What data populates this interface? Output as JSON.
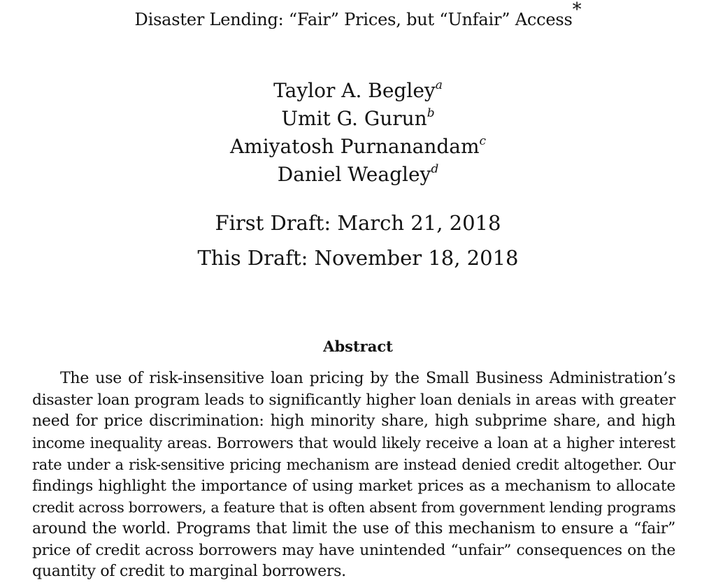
{
  "paper": {
    "title": "Disaster Lending: “Fair” Prices, but “Unfair” Access",
    "title_footnote_mark": "*",
    "authors": [
      {
        "name": "Taylor A. Begley",
        "affiliation_mark": "a"
      },
      {
        "name": "Umit G. Gurun",
        "affiliation_mark": "b"
      },
      {
        "name": "Amiyatosh Purnanandam",
        "affiliation_mark": "c"
      },
      {
        "name": "Daniel Weagley",
        "affiliation_mark": "d"
      }
    ],
    "first_draft": "First Draft: March 21, 2018",
    "this_draft": "This Draft: November 18, 2018"
  },
  "abstract": {
    "heading": "Abstract",
    "lines": [
      "The use of risk-insensitive loan pricing by the Small Business Administration’s",
      "disaster loan program leads to significantly higher loan denials in areas with greater",
      "need for price discrimination: high minority share, high subprime share, and high",
      "income inequality areas. Borrowers that would likely receive a loan at a higher interest",
      "rate under a risk-sensitive pricing mechanism are instead denied credit altogether. Our",
      "findings highlight the importance of using market prices as a mechanism to allocate",
      "credit across borrowers, a feature that is often absent from government lending programs",
      "around the world. Programs that limit the use of this mechanism to ensure a “fair”",
      "price of credit across borrowers may have unintended “unfair” consequences on the",
      "quantity of credit to marginal borrowers."
    ]
  }
}
